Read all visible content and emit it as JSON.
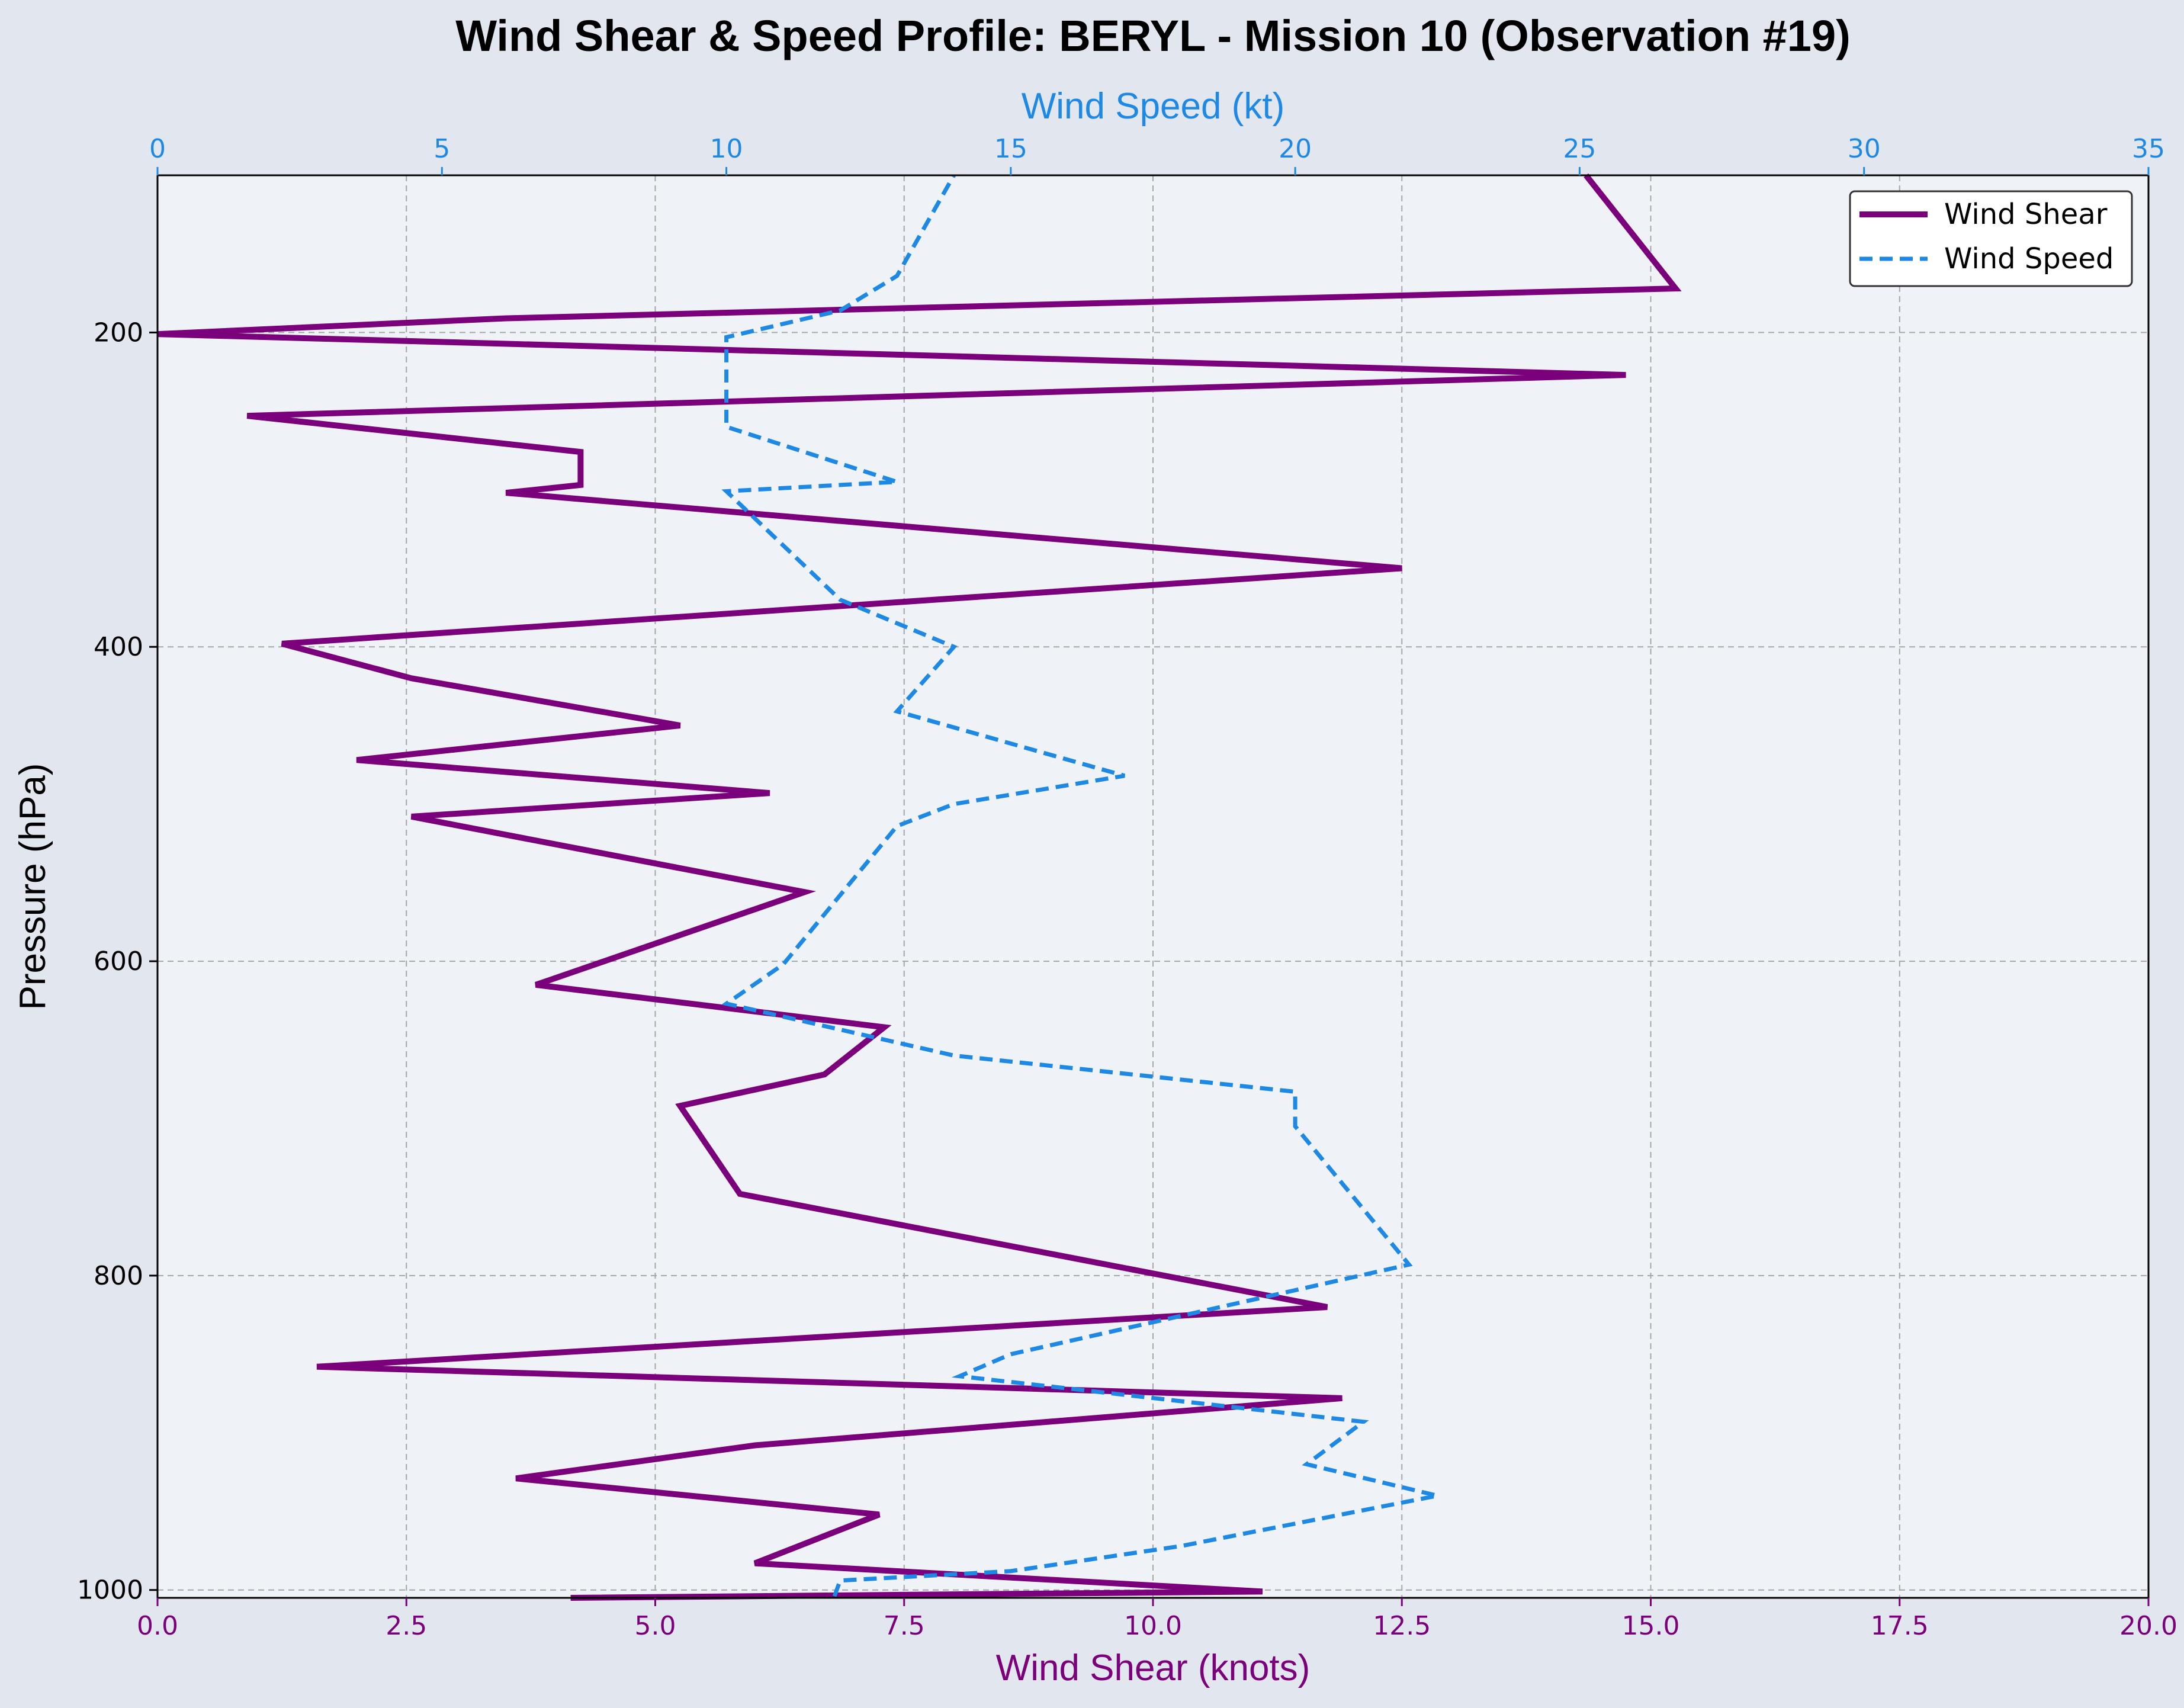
{
  "chart_data": {
    "type": "line",
    "title": "Wind Shear & Speed Profile: BERYL - Mission 10 (Observation #19)",
    "xlabel_bottom": "Wind Shear (knots)",
    "xlabel_top": "Wind Speed (kt)",
    "ylabel": "Pressure (hPa)",
    "x_bottom_lim": [
      0,
      20
    ],
    "x_bottom_ticks": [
      "0.0",
      "2.5",
      "5.0",
      "7.5",
      "10.0",
      "12.5",
      "15.0",
      "17.5",
      "20.0"
    ],
    "x_top_lim": [
      0,
      35
    ],
    "x_top_ticks": [
      "0",
      "5",
      "10",
      "15",
      "20",
      "25",
      "30",
      "35"
    ],
    "y_lim": [
      1005,
      100
    ],
    "y_inverted": true,
    "y_ticks": [
      "200",
      "400",
      "600",
      "800",
      "1000"
    ],
    "grid": true,
    "legend_position": "top-right",
    "series": [
      {
        "name": "Wind Shear",
        "axis": "bottom",
        "color": "#7b007b",
        "style": "solid",
        "points": [
          [
            4.15,
            1005
          ],
          [
            11.1,
            1001
          ],
          [
            6.0,
            983
          ],
          [
            7.25,
            952
          ],
          [
            3.6,
            929
          ],
          [
            6.0,
            908
          ],
          [
            11.9,
            878
          ],
          [
            1.6,
            858
          ],
          [
            11.75,
            820
          ],
          [
            5.85,
            748
          ],
          [
            5.25,
            692
          ],
          [
            6.7,
            672
          ],
          [
            7.3,
            642
          ],
          [
            3.8,
            615
          ],
          [
            6.5,
            556
          ],
          [
            2.55,
            508
          ],
          [
            6.15,
            493
          ],
          [
            2.0,
            472
          ],
          [
            5.25,
            450
          ],
          [
            2.55,
            420
          ],
          [
            1.25,
            398
          ],
          [
            12.5,
            350
          ],
          [
            3.5,
            302
          ],
          [
            4.25,
            297
          ],
          [
            4.25,
            276
          ],
          [
            0.9,
            253
          ],
          [
            14.75,
            227
          ],
          [
            0.0,
            201
          ],
          [
            3.5,
            191
          ],
          [
            15.25,
            172
          ],
          [
            14.35,
            100
          ]
        ]
      },
      {
        "name": "Wind Speed",
        "axis": "top",
        "color": "#1e88e5",
        "style": "dashed",
        "points": [
          [
            11.9,
            1004
          ],
          [
            12.0,
            994
          ],
          [
            15.0,
            988
          ],
          [
            18.0,
            972
          ],
          [
            22.5,
            940
          ],
          [
            20.2,
            920
          ],
          [
            21.2,
            893
          ],
          [
            14.1,
            864
          ],
          [
            15.0,
            850
          ],
          [
            22.0,
            793
          ],
          [
            20.0,
            705
          ],
          [
            20.0,
            683
          ],
          [
            14.0,
            660
          ],
          [
            10.0,
            627
          ],
          [
            11.0,
            602
          ],
          [
            13.0,
            514
          ],
          [
            14.0,
            500
          ],
          [
            17.0,
            482
          ],
          [
            13.0,
            441
          ],
          [
            14.0,
            400
          ],
          [
            12.0,
            370
          ],
          [
            10.0,
            301
          ],
          [
            13.0,
            295
          ],
          [
            10.0,
            260
          ],
          [
            10.0,
            203
          ],
          [
            12.0,
            186
          ],
          [
            13.0,
            164
          ],
          [
            14.0,
            100
          ]
        ]
      }
    ]
  }
}
